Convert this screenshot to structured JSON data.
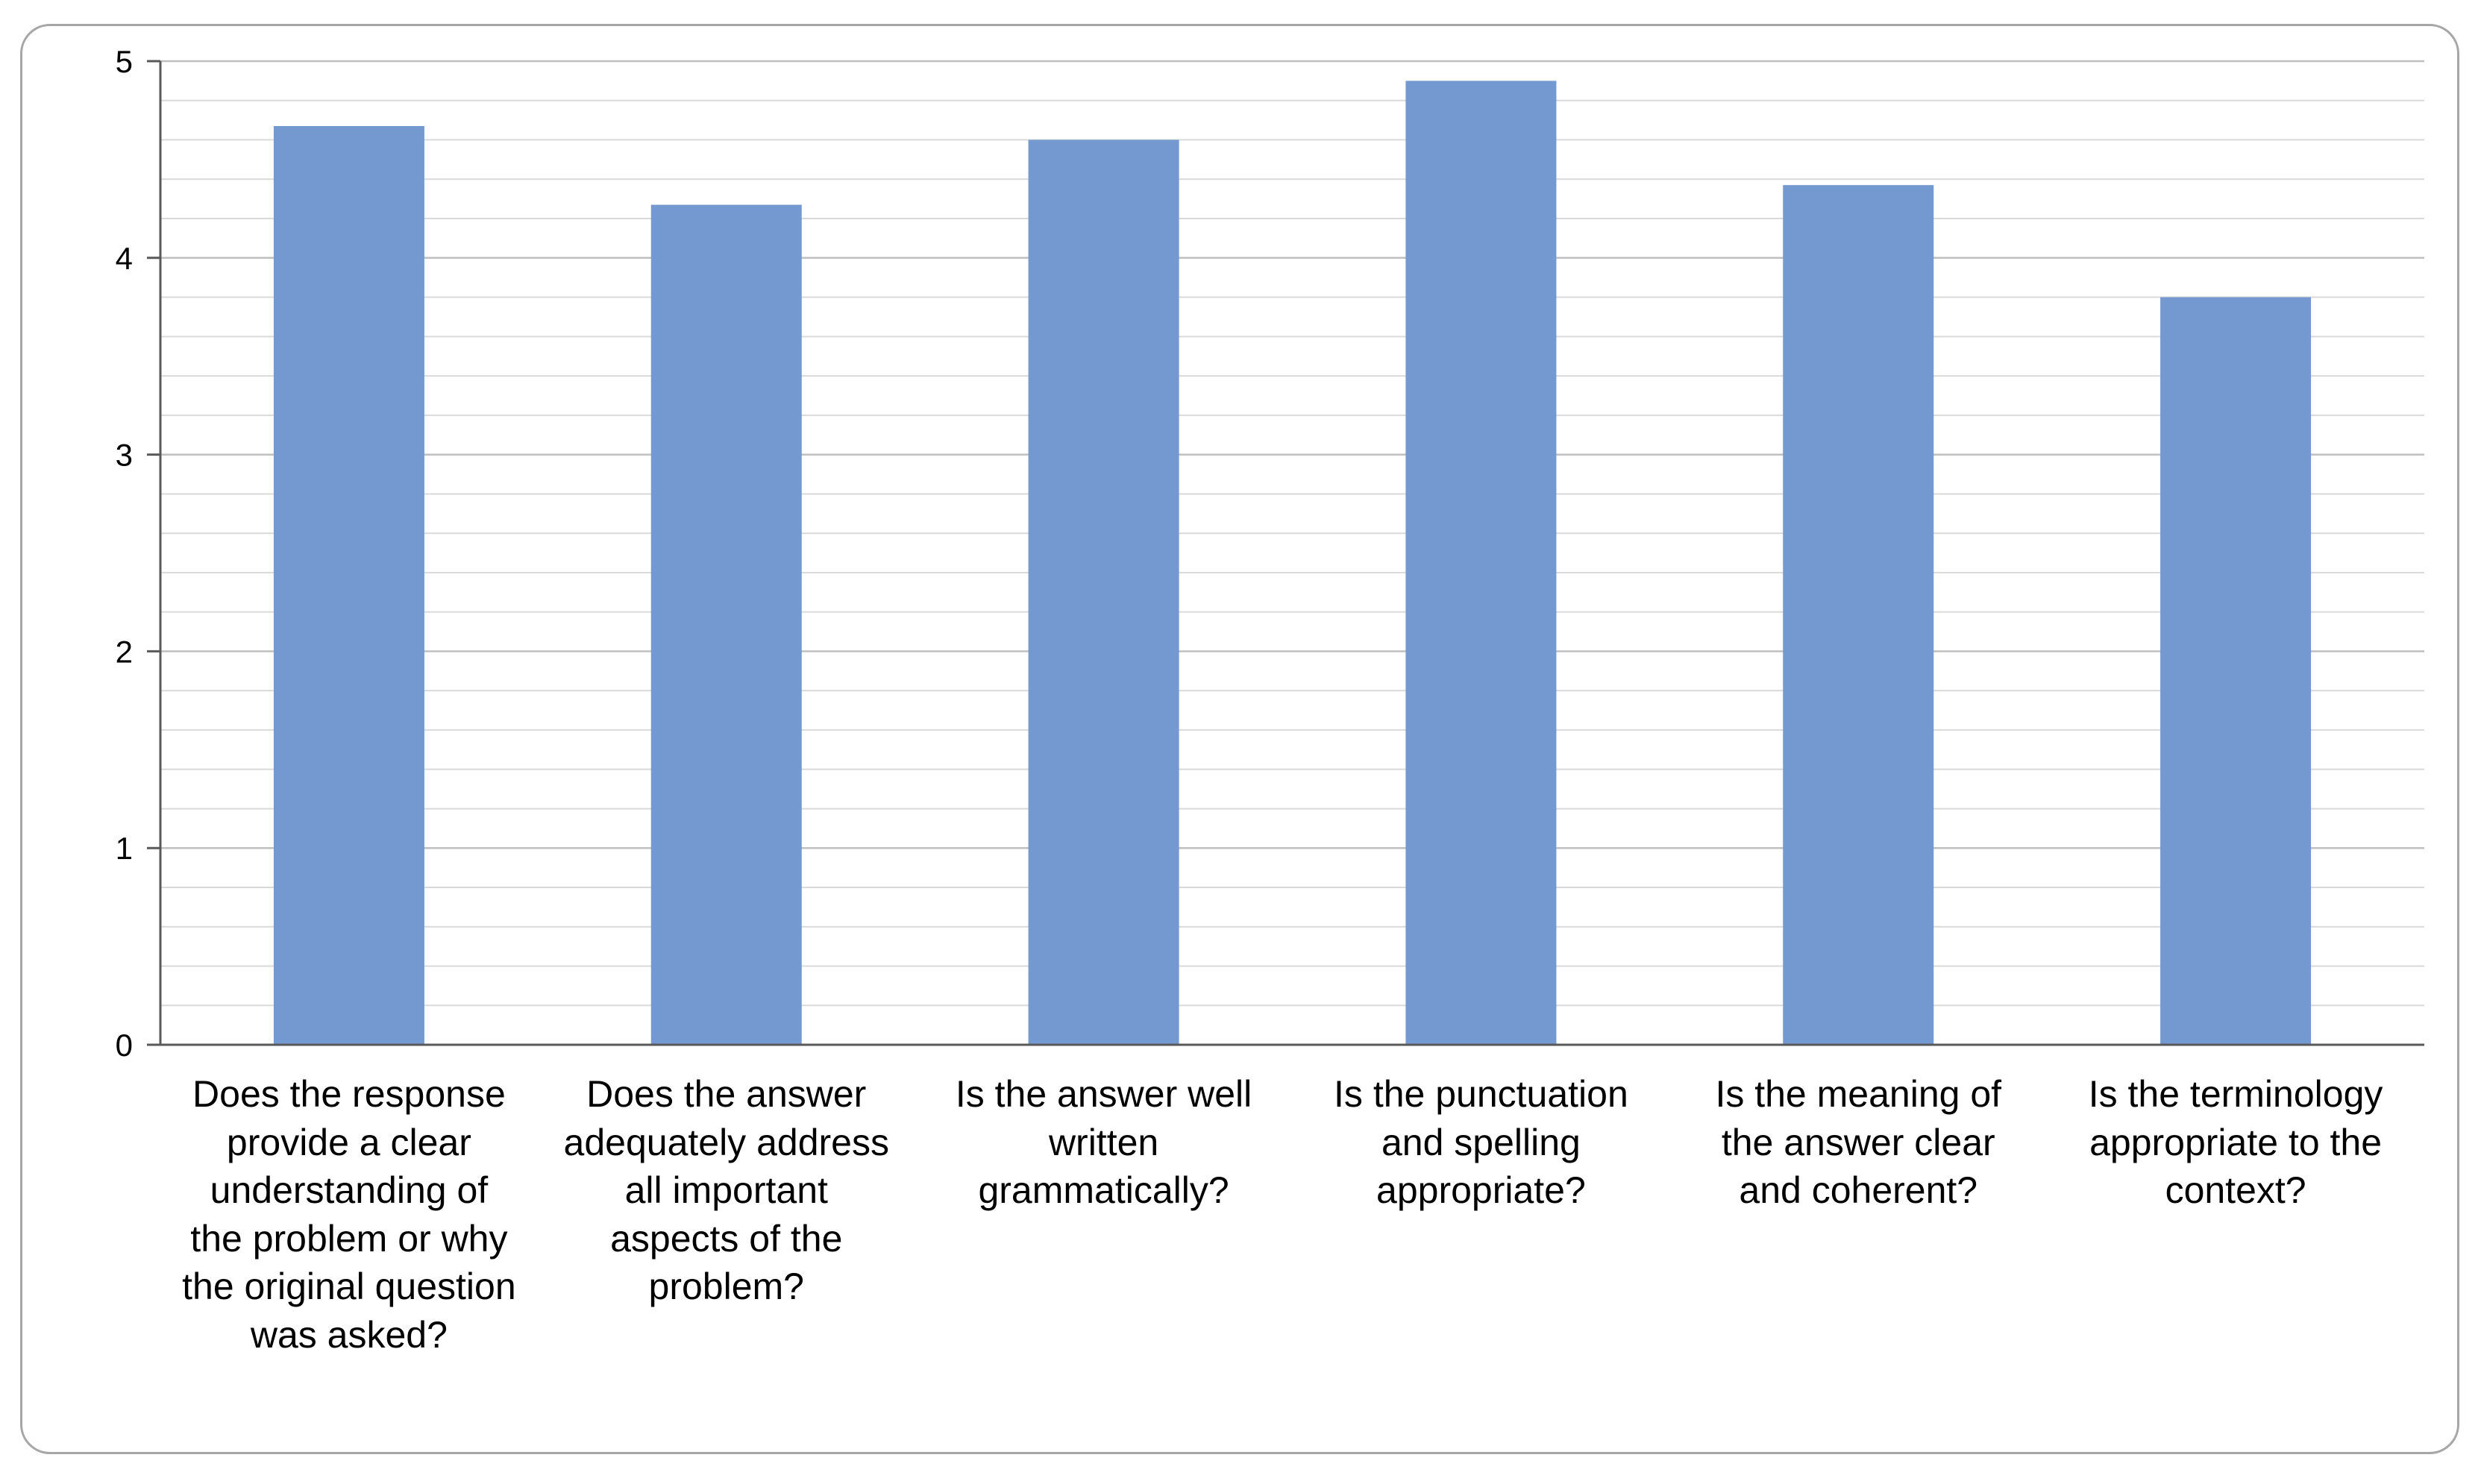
{
  "chart_data": {
    "type": "bar",
    "categories": [
      "Does the response provide a clear understanding of the problem or why the original question was asked?",
      "Does the answer adequately address all important aspects of the problem?",
      "Is the answer well written grammatically?",
      "Is the punctuation and spelling appropriate?",
      "Is the meaning of the answer clear and coherent?",
      "Is the terminology appropriate to the context?"
    ],
    "category_lines": [
      [
        "Does the response",
        "provide a clear",
        "understanding of",
        "the problem or why",
        "the original question",
        "was asked?"
      ],
      [
        "Does the answer",
        "adequately address",
        "all important",
        "aspects of the",
        "problem?"
      ],
      [
        "Is the answer well",
        "written",
        "grammatically?"
      ],
      [
        "Is the punctuation",
        "and spelling",
        "appropriate?"
      ],
      [
        "Is the meaning of",
        "the answer clear",
        "and coherent?"
      ],
      [
        "Is the terminology",
        "appropriate to the",
        "context?"
      ]
    ],
    "values": [
      4.67,
      4.27,
      4.6,
      4.9,
      4.37,
      3.8
    ],
    "y_ticks": [
      "0",
      "1",
      "2",
      "3",
      "4",
      "5"
    ],
    "ylim": [
      0,
      5
    ],
    "minor_grid_step": 0.2,
    "grid": true,
    "legend": "none",
    "bar_color": "#7399d0",
    "major_grid_color": "#bfbfbf",
    "minor_grid_color": "#d9d9d9",
    "axis_color": "#595959"
  }
}
